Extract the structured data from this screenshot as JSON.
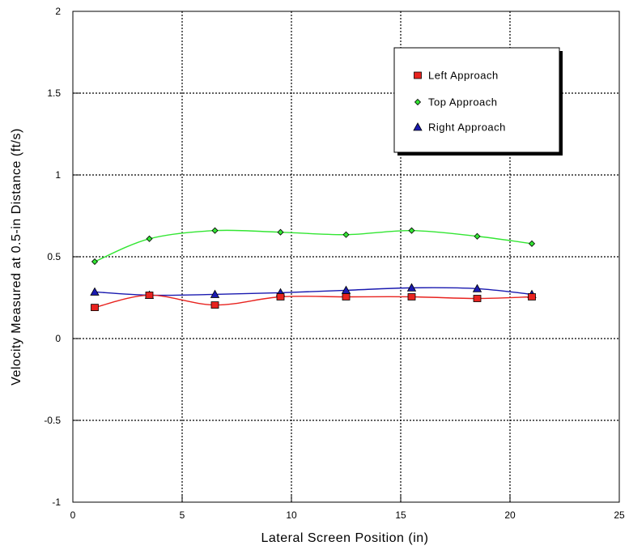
{
  "chart_data": {
    "type": "line",
    "xlabel": "Lateral Screen Position (in)",
    "ylabel": "Velocity Measured at 0.5-in Distance (ft/s)",
    "xlim": [
      0,
      25
    ],
    "ylim": [
      -1,
      2
    ],
    "xticks": [
      0,
      5,
      10,
      15,
      20,
      25
    ],
    "yticks": [
      -1,
      -0.5,
      0,
      0.5,
      1,
      1.5,
      2
    ],
    "xtick_labels": [
      "0",
      "5",
      "10",
      "15",
      "20",
      "25"
    ],
    "ytick_labels": [
      "-1",
      "-0.5",
      "0",
      "0.5",
      "1",
      "1.5",
      "2"
    ],
    "grid": "dotted, major ticks",
    "legend_position": "top-right",
    "series": [
      {
        "name": "Left Approach",
        "marker": "square",
        "color": "#e8231f",
        "x": [
          1,
          3.5,
          6.5,
          9.5,
          12.5,
          15.5,
          18.5,
          21
        ],
        "y": [
          0.19,
          0.265,
          0.205,
          0.255,
          0.255,
          0.255,
          0.245,
          0.255
        ]
      },
      {
        "name": "Top Approach",
        "marker": "diamond",
        "color": "#33e633",
        "x": [
          1,
          3.5,
          6.5,
          9.5,
          12.5,
          15.5,
          18.5,
          21
        ],
        "y": [
          0.47,
          0.61,
          0.66,
          0.65,
          0.635,
          0.66,
          0.625,
          0.58
        ]
      },
      {
        "name": "Right Approach",
        "marker": "triangle",
        "color": "#1a1ab0",
        "x": [
          1,
          3.5,
          6.5,
          9.5,
          12.5,
          15.5,
          18.5,
          21
        ],
        "y": [
          0.285,
          0.265,
          0.27,
          0.28,
          0.295,
          0.31,
          0.305,
          0.27
        ]
      }
    ]
  }
}
